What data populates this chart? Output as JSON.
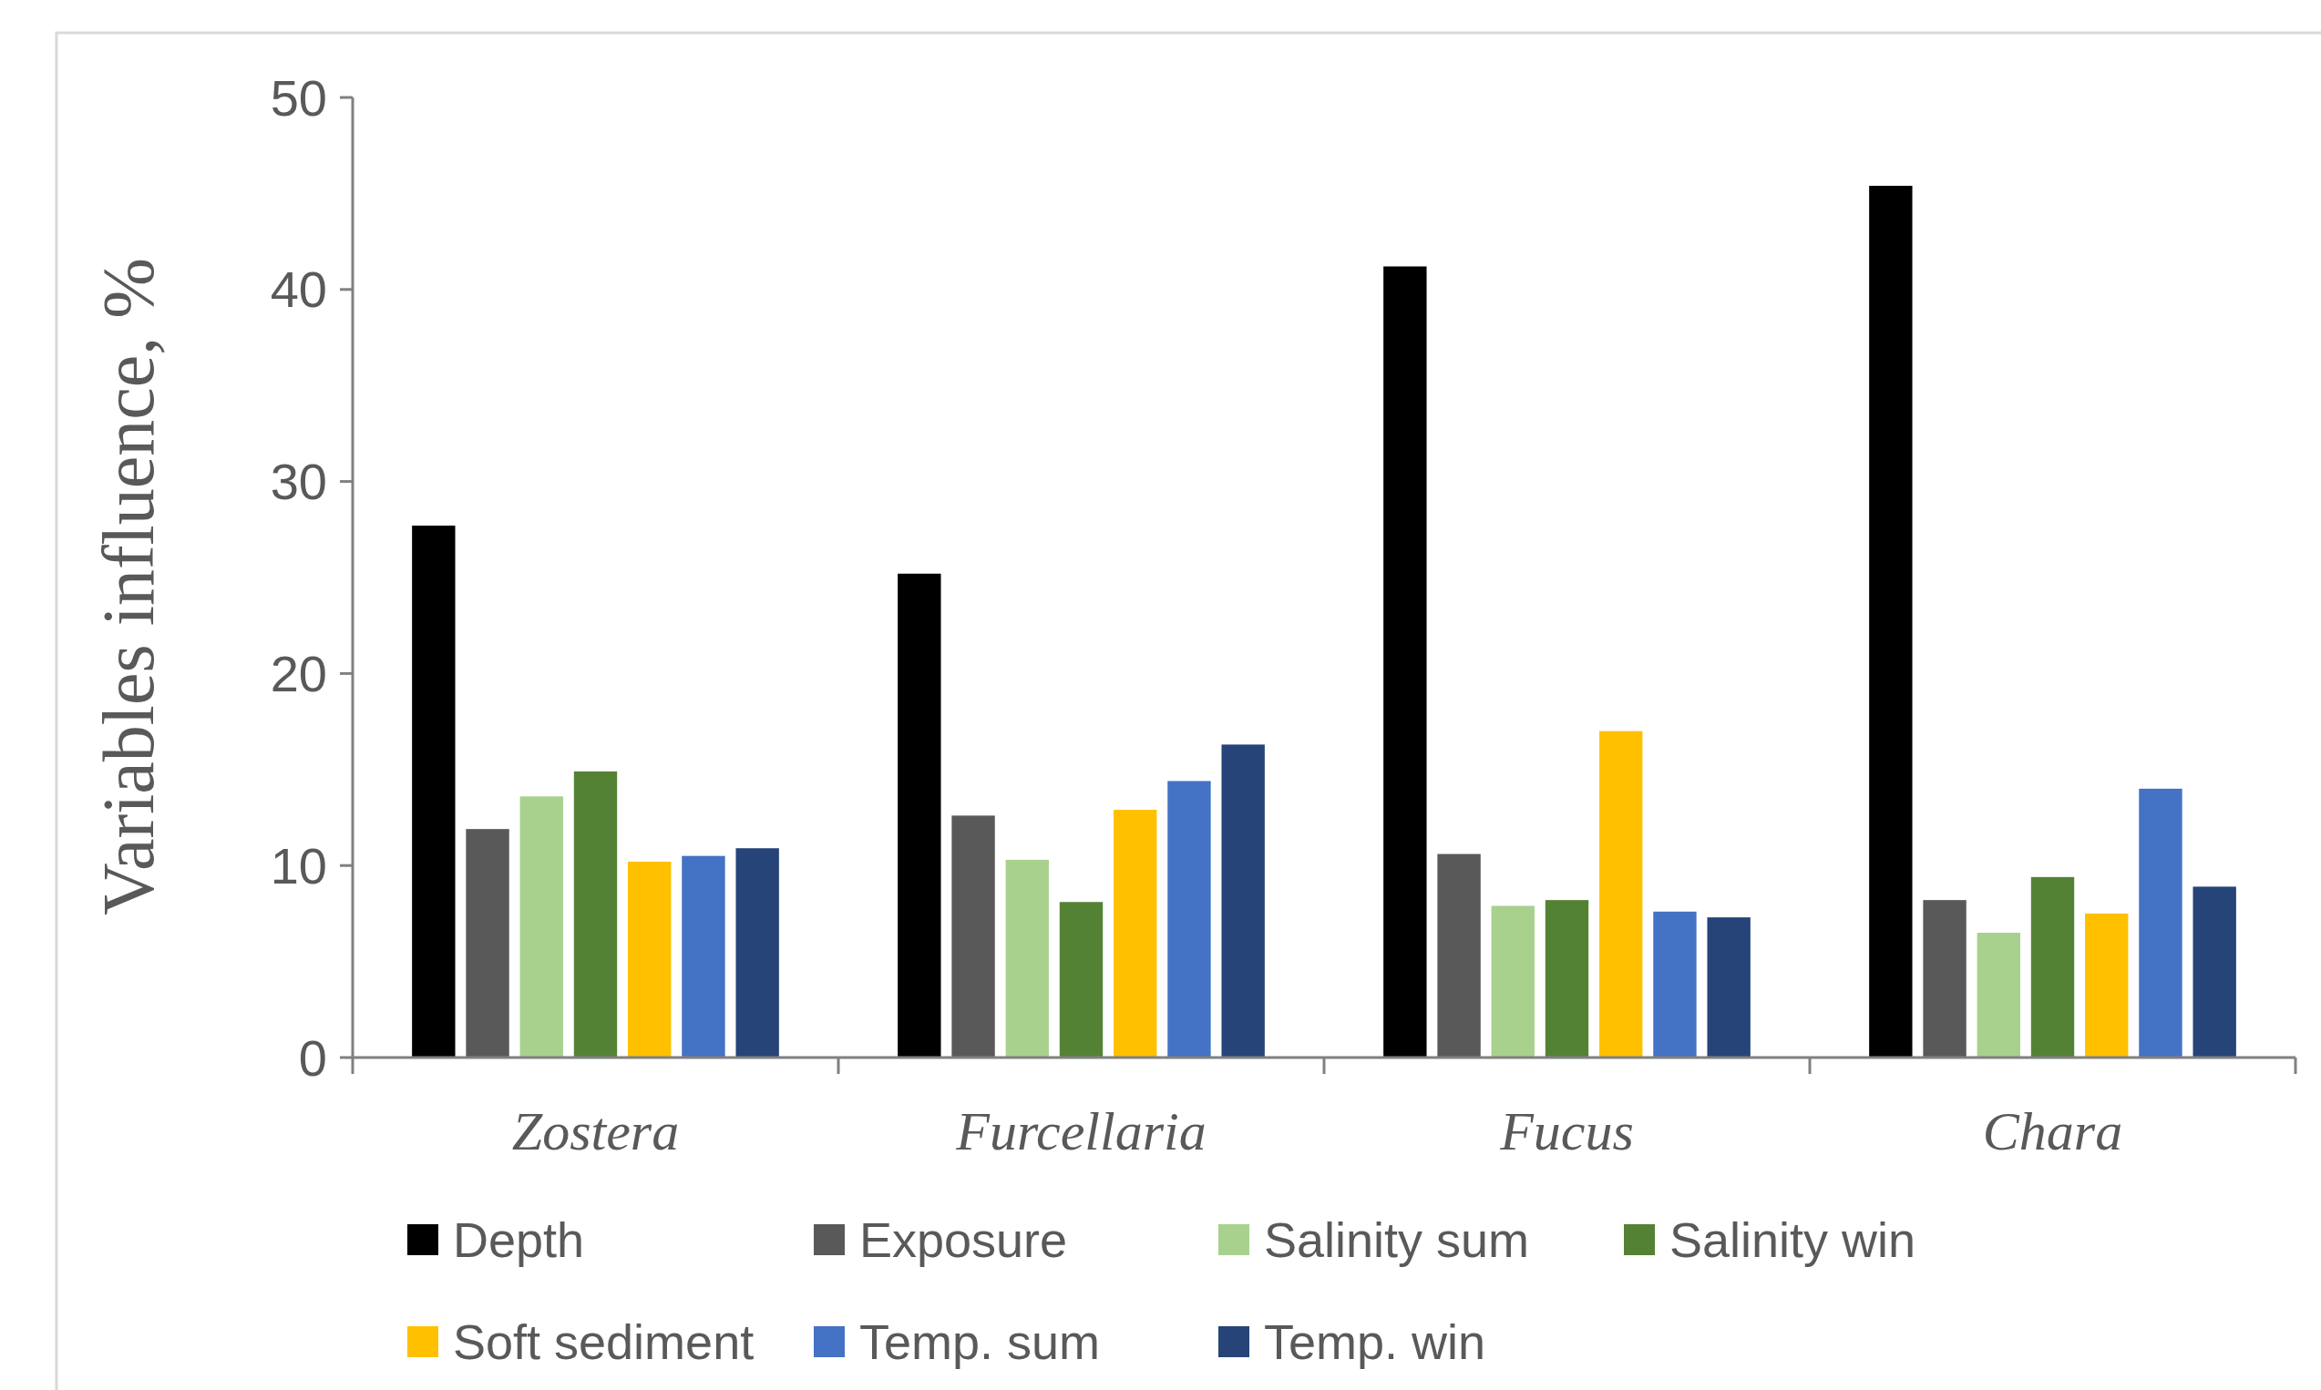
{
  "chart_data": {
    "type": "bar",
    "ylabel": "Variables influence, %",
    "categories": [
      "Zostera",
      "Furcellaria",
      "Fucus",
      "Chara"
    ],
    "ylim": [
      0,
      50
    ],
    "yticks": [
      0,
      10,
      20,
      30,
      40,
      50
    ],
    "grid": false,
    "legend": "bottom",
    "series": [
      {
        "name": "Depth",
        "color": "#000000",
        "values": [
          27.7,
          25.2,
          41.2,
          45.4
        ]
      },
      {
        "name": "Exposure",
        "color": "#595959",
        "values": [
          11.9,
          12.6,
          10.6,
          8.2
        ]
      },
      {
        "name": "Salinity sum",
        "color": "#a9d18e",
        "values": [
          13.6,
          10.3,
          7.9,
          6.5
        ]
      },
      {
        "name": "Salinity win",
        "color": "#548235",
        "values": [
          14.9,
          8.1,
          8.2,
          9.4
        ]
      },
      {
        "name": "Soft sediment",
        "color": "#ffc000",
        "values": [
          10.2,
          12.9,
          17.0,
          7.5
        ]
      },
      {
        "name": "Temp. sum",
        "color": "#4472c4",
        "values": [
          10.5,
          14.4,
          7.6,
          14.0
        ]
      },
      {
        "name": "Temp. win",
        "color": "#264478",
        "values": [
          10.9,
          16.3,
          7.3,
          8.9
        ]
      }
    ]
  }
}
